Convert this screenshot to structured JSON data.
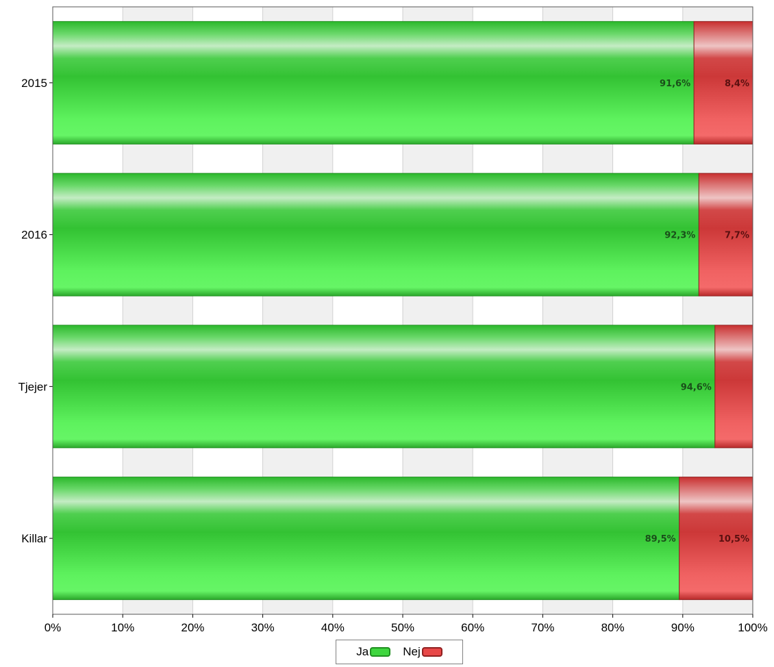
{
  "chart_data": {
    "type": "bar",
    "orientation": "horizontal",
    "stacked": true,
    "categories": [
      "2015",
      "2016",
      "Tjejer",
      "Killar"
    ],
    "series": [
      {
        "name": "Ja",
        "color": "#3fcf3f",
        "values": [
          91.6,
          92.3,
          94.6,
          89.5
        ],
        "labels": [
          "91,6%",
          "92,3%",
          "94,6%",
          "89,5%"
        ]
      },
      {
        "name": "Nej",
        "color": "#e84848",
        "values": [
          8.4,
          7.7,
          5.4,
          10.5
        ],
        "labels": [
          "8,4%",
          "7,7%",
          "",
          "10,5%"
        ]
      }
    ],
    "xlim": [
      0,
      100
    ],
    "xticks": [
      "0%",
      "10%",
      "20%",
      "30%",
      "40%",
      "50%",
      "60%",
      "70%",
      "80%",
      "90%",
      "100%"
    ],
    "grid": true,
    "legend_position": "bottom"
  }
}
